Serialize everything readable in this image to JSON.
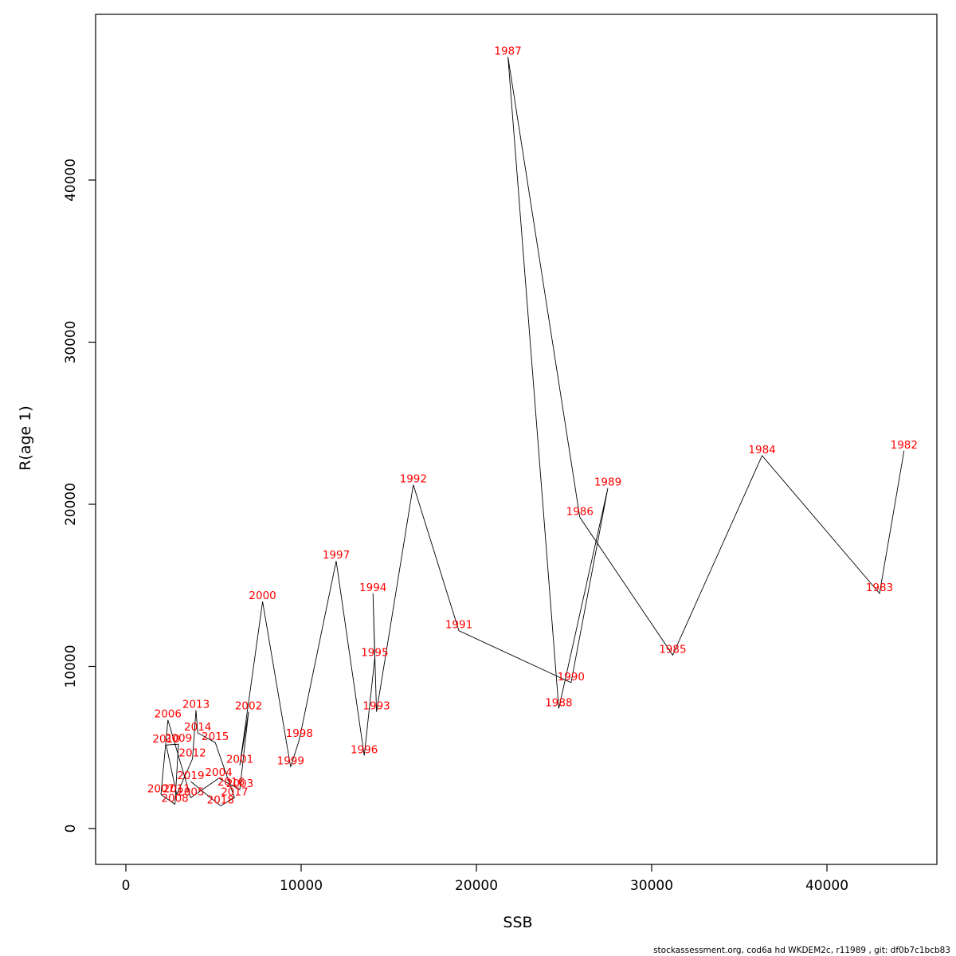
{
  "footer": {
    "text": "stockassessment.org, cod6a hd WKDEM2c, r11989 , git: df0b7c1bcb83"
  },
  "chart_data": {
    "type": "scatter",
    "title": "",
    "xlabel": "SSB",
    "ylabel": "R(age 1)",
    "xlim": [
      0,
      46000
    ],
    "ylim": [
      0,
      48500
    ],
    "x_ticks": [
      0,
      10000,
      20000,
      30000,
      40000
    ],
    "y_ticks": [
      0,
      10000,
      20000,
      30000,
      40000
    ],
    "grid": false,
    "legend": "none",
    "label_color": "#ff0000",
    "line_color": "#000000",
    "points": [
      {
        "year": "1982",
        "ssb": 44400,
        "r": 23300
      },
      {
        "year": "1983",
        "ssb": 43000,
        "r": 14500
      },
      {
        "year": "1984",
        "ssb": 36300,
        "r": 23000
      },
      {
        "year": "1985",
        "ssb": 31200,
        "r": 10700
      },
      {
        "year": "1986",
        "ssb": 25900,
        "r": 19200
      },
      {
        "year": "1987",
        "ssb": 21800,
        "r": 47600
      },
      {
        "year": "1988",
        "ssb": 24700,
        "r": 7400
      },
      {
        "year": "1989",
        "ssb": 27500,
        "r": 21000
      },
      {
        "year": "1990",
        "ssb": 25400,
        "r": 9000
      },
      {
        "year": "1991",
        "ssb": 19000,
        "r": 12200
      },
      {
        "year": "1992",
        "ssb": 16400,
        "r": 21200
      },
      {
        "year": "1993",
        "ssb": 14300,
        "r": 7200
      },
      {
        "year": "1994",
        "ssb": 14100,
        "r": 14500
      },
      {
        "year": "1995",
        "ssb": 14200,
        "r": 10500
      },
      {
        "year": "1996",
        "ssb": 13600,
        "r": 4500
      },
      {
        "year": "1997",
        "ssb": 12000,
        "r": 16500
      },
      {
        "year": "1998",
        "ssb": 9900,
        "r": 5500
      },
      {
        "year": "1999",
        "ssb": 9400,
        "r": 3800
      },
      {
        "year": "2000",
        "ssb": 7800,
        "r": 14000
      },
      {
        "year": "2001",
        "ssb": 6500,
        "r": 3900
      },
      {
        "year": "2002",
        "ssb": 7000,
        "r": 7200
      },
      {
        "year": "2003",
        "ssb": 6500,
        "r": 2400
      },
      {
        "year": "2004",
        "ssb": 5300,
        "r": 3100
      },
      {
        "year": "2005",
        "ssb": 3700,
        "r": 1900
      },
      {
        "year": "2006",
        "ssb": 2400,
        "r": 6700
      },
      {
        "year": "2007",
        "ssb": 2000,
        "r": 2100
      },
      {
        "year": "2008",
        "ssb": 2800,
        "r": 1500
      },
      {
        "year": "2009",
        "ssb": 3000,
        "r": 5200
      },
      {
        "year": "2010",
        "ssb": 2300,
        "r": 5150
      },
      {
        "year": "2011",
        "ssb": 2900,
        "r": 2100
      },
      {
        "year": "2012",
        "ssb": 3800,
        "r": 4300
      },
      {
        "year": "2013",
        "ssb": 4000,
        "r": 7300
      },
      {
        "year": "2014",
        "ssb": 4100,
        "r": 5900
      },
      {
        "year": "2015",
        "ssb": 5100,
        "r": 5300
      },
      {
        "year": "2016",
        "ssb": 6000,
        "r": 2500
      },
      {
        "year": "2017",
        "ssb": 6200,
        "r": 1900
      },
      {
        "year": "2018",
        "ssb": 5400,
        "r": 1400
      },
      {
        "year": "2019",
        "ssb": 3700,
        "r": 2900
      }
    ]
  }
}
